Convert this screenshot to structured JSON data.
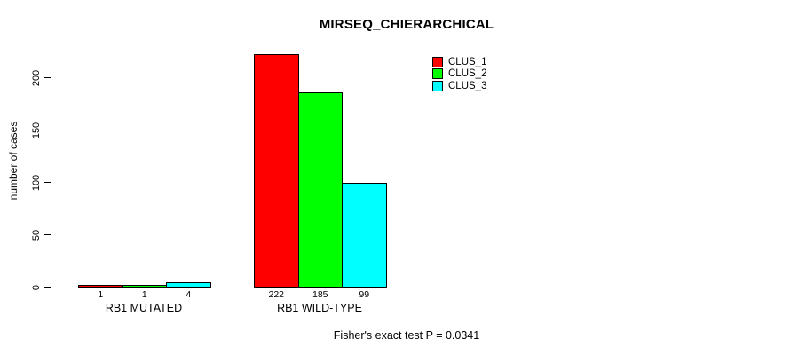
{
  "chart_data": {
    "type": "bar",
    "title": "MIRSEQ_CHIERARCHICAL",
    "xlabel": "",
    "ylabel": "number of cases",
    "categories": [
      "RB1 MUTATED",
      "RB1 WILD-TYPE"
    ],
    "series": [
      {
        "name": "CLUS_1",
        "color": "#FF0000",
        "values": [
          1,
          222
        ]
      },
      {
        "name": "CLUS_2",
        "color": "#00FF00",
        "values": [
          1,
          185
        ]
      },
      {
        "name": "CLUS_3",
        "color": "#00FFFF",
        "values": [
          4,
          99
        ]
      }
    ],
    "yticks": [
      0,
      50,
      100,
      150,
      200
    ],
    "ylim": [
      0,
      225
    ],
    "grid": false,
    "legend_position": "top-right-inside",
    "bar_value_labels": true,
    "annotation": "Fisher's exact test P = 0.0341"
  }
}
